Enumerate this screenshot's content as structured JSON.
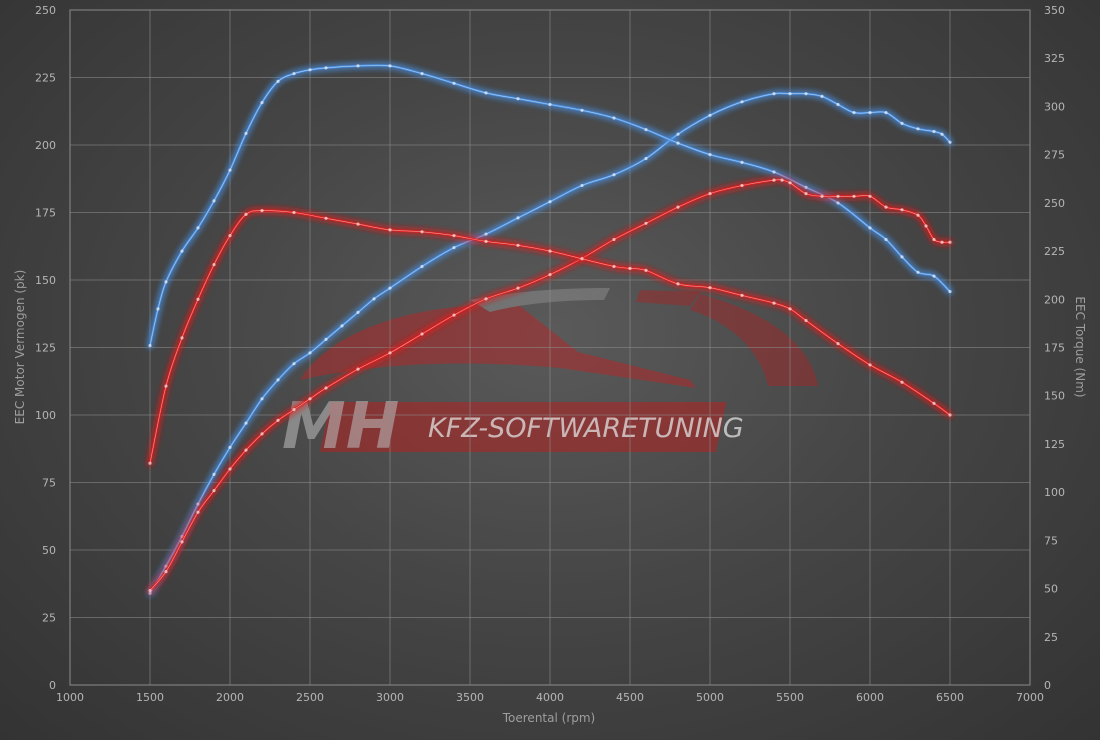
{
  "chart_data": {
    "type": "line",
    "xlabel": "Toerental (rpm)",
    "ylabel_left": "EEC Motor Vermogen (pk)",
    "ylabel_right": "EEC Torque (Nm)",
    "xlim": [
      1000,
      7000
    ],
    "ylim_left": [
      0,
      250
    ],
    "ylim_right": [
      0,
      350
    ],
    "xticks": [
      1000,
      1500,
      2000,
      2500,
      3000,
      3500,
      4000,
      4500,
      5000,
      5500,
      6000,
      6500,
      7000
    ],
    "yticks_left": [
      0,
      25,
      50,
      75,
      100,
      125,
      150,
      175,
      200,
      225,
      250
    ],
    "yticks_right": [
      0,
      25,
      50,
      75,
      100,
      125,
      150,
      175,
      200,
      225,
      250,
      275,
      300,
      325,
      350
    ],
    "grid": true,
    "series": [
      {
        "name": "",
        "kind": "power",
        "axis": "left",
        "color": "#4a90e2",
        "x": [
          1500,
          1600,
          1700,
          1800,
          1900,
          2000,
          2100,
          2200,
          2300,
          2400,
          2500,
          2600,
          2700,
          2800,
          2900,
          3000,
          3200,
          3400,
          3600,
          3800,
          4000,
          4200,
          4400,
          4600,
          4800,
          5000,
          5200,
          5400,
          5500,
          5600,
          5700,
          5800,
          5900,
          6000,
          6100,
          6200,
          6300,
          6400,
          6450,
          6500
        ],
        "y": [
          34,
          44,
          55,
          67,
          78,
          88,
          97,
          106,
          113,
          119,
          123,
          128,
          133,
          138,
          143,
          147,
          155,
          162,
          167,
          173,
          179,
          185,
          189,
          195,
          204,
          211,
          216,
          219,
          219,
          219,
          218,
          215,
          212,
          212,
          212,
          208,
          206,
          205,
          204,
          201
        ]
      },
      {
        "name": "",
        "kind": "torque",
        "axis": "right",
        "color": "#4a90e2",
        "x": [
          1500,
          1550,
          1600,
          1700,
          1800,
          1900,
          2000,
          2100,
          2200,
          2300,
          2400,
          2500,
          2600,
          2800,
          3000,
          3200,
          3400,
          3600,
          3800,
          4000,
          4200,
          4400,
          4600,
          4800,
          5000,
          5200,
          5400,
          5600,
          5800,
          6000,
          6100,
          6200,
          6300,
          6400,
          6500
        ],
        "y": [
          176,
          195,
          209,
          225,
          237,
          251,
          267,
          286,
          302,
          313,
          317,
          319,
          320,
          321,
          321,
          317,
          312,
          307,
          304,
          301,
          298,
          294,
          288,
          281,
          275,
          271,
          266,
          258,
          250,
          237,
          231,
          222,
          214,
          212,
          204
        ]
      },
      {
        "name": "",
        "kind": "power",
        "axis": "left",
        "color": "#e02020",
        "x": [
          1500,
          1600,
          1700,
          1800,
          1900,
          2000,
          2100,
          2200,
          2300,
          2400,
          2500,
          2600,
          2800,
          3000,
          3200,
          3400,
          3600,
          3800,
          4000,
          4200,
          4400,
          4600,
          4800,
          5000,
          5200,
          5400,
          5450,
          5500,
          5600,
          5700,
          5800,
          5900,
          6000,
          6100,
          6200,
          6300,
          6350,
          6400,
          6450,
          6500
        ],
        "y": [
          35,
          42,
          53,
          64,
          72,
          80,
          87,
          93,
          98,
          102,
          106,
          110,
          117,
          123,
          130,
          137,
          143,
          147,
          152,
          158,
          165,
          171,
          177,
          182,
          185,
          187,
          187,
          186,
          182,
          181,
          181,
          181,
          181,
          177,
          176,
          174,
          170,
          165,
          164,
          164
        ]
      },
      {
        "name": "",
        "kind": "torque",
        "axis": "right",
        "color": "#e02020",
        "x": [
          1500,
          1600,
          1700,
          1800,
          1900,
          2000,
          2100,
          2200,
          2400,
          2600,
          2800,
          3000,
          3200,
          3400,
          3600,
          3800,
          4000,
          4200,
          4400,
          4500,
          4600,
          4800,
          5000,
          5200,
          5400,
          5500,
          5600,
          5800,
          6000,
          6200,
          6400,
          6500
        ],
        "y": [
          115,
          155,
          180,
          200,
          218,
          233,
          244,
          246,
          245,
          242,
          239,
          236,
          235,
          233,
          230,
          228,
          225,
          221,
          217,
          216,
          215,
          208,
          206,
          202,
          198,
          195,
          189,
          177,
          166,
          157,
          146,
          140
        ]
      }
    ]
  },
  "watermark": {
    "mark_text": "MH",
    "brand_text": "KFZ-SOFTWARETUNING"
  }
}
